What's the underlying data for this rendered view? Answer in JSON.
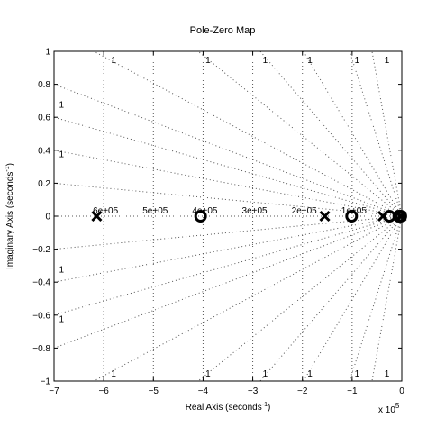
{
  "chart_data": {
    "type": "scatter",
    "title": "Pole-Zero Map",
    "xlabel": "Real Axis (seconds",
    "ylabel": "Imaginary Axis (seconds",
    "unit_exponent": "-1",
    "x_multiplier_prefix": "x 10",
    "x_multiplier_exponent": "5",
    "xlim": [
      -7,
      0
    ],
    "ylim": [
      -1,
      1
    ],
    "x_ticks": [
      -7,
      -6,
      -5,
      -4,
      -3,
      -2,
      -1,
      0
    ],
    "x_tick_labels": [
      "−7",
      "−6",
      "−5",
      "−4",
      "−3",
      "−2",
      "−1",
      "0"
    ],
    "y_ticks": [
      -1,
      -0.8,
      -0.6,
      -0.4,
      -0.2,
      0,
      0.2,
      0.4,
      0.6,
      0.8,
      1
    ],
    "y_tick_labels": [
      "−1",
      "−0.8",
      "−0.6",
      "−0.4",
      "−0.2",
      "0",
      "0.2",
      "0.4",
      "0.6",
      "0.8",
      "1"
    ],
    "grid": true,
    "frequency_grid": {
      "values": [
        1,
        2,
        3,
        4,
        5,
        6
      ],
      "labels": [
        "1e+05",
        "2e+05",
        "3e+05",
        "4e+05",
        "5e+05",
        "6e+05"
      ]
    },
    "damping_label": "1",
    "poles": [
      {
        "x": -6.14,
        "y": 0
      },
      {
        "x": -1.55,
        "y": 0
      },
      {
        "x": -0.38,
        "y": 0
      },
      {
        "x": -0.03,
        "y": 0
      },
      {
        "x": -0.01,
        "y": 0
      }
    ],
    "zeros": [
      {
        "x": -4.05,
        "y": 0
      },
      {
        "x": -1.01,
        "y": 0
      },
      {
        "x": -0.25,
        "y": 0
      },
      {
        "x": -0.06,
        "y": 0
      },
      {
        "x": -0.02,
        "y": 0
      }
    ]
  }
}
